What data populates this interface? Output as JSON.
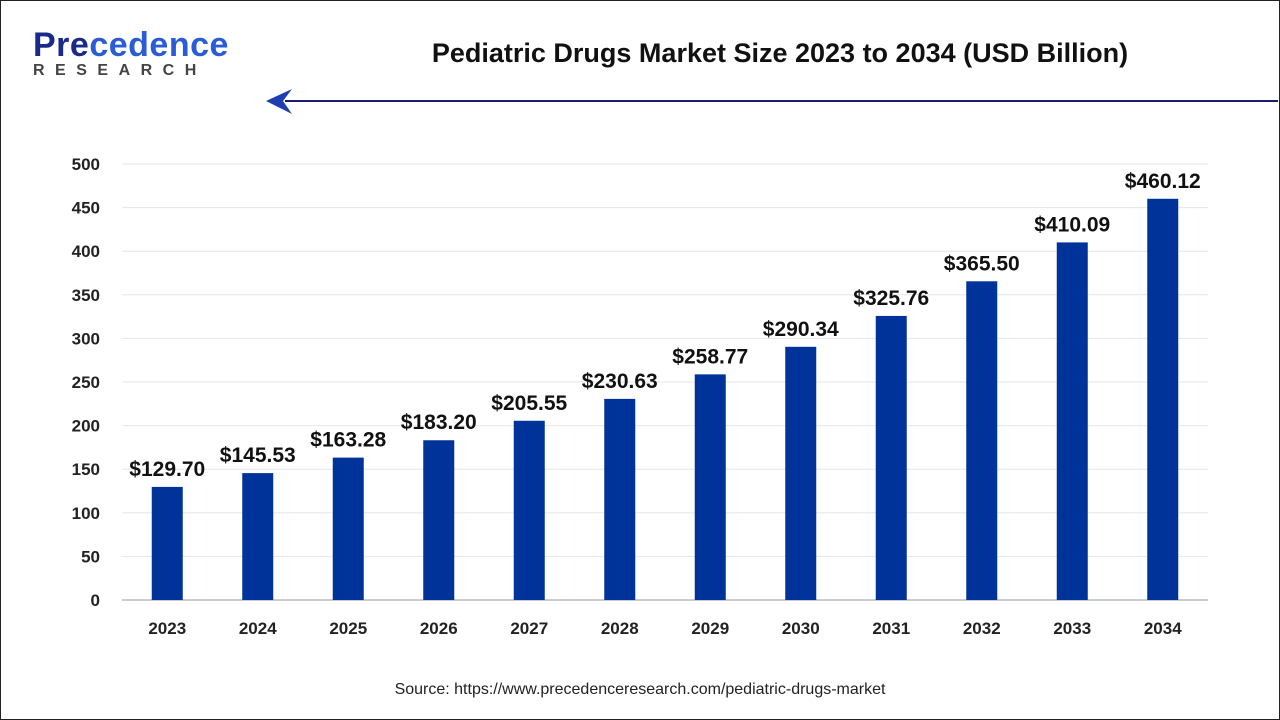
{
  "logo": {
    "text_main_dark": "Pre",
    "text_main_light": "cedence",
    "text_sub": "RESEARCH"
  },
  "source": "Source: https://www.precedenceresearch.com/pediatric-drugs-market",
  "colors": {
    "bar": "#003399",
    "arrow": "#1a1a6e"
  },
  "chart_data": {
    "type": "bar",
    "title": "Pediatric Drugs Market Size 2023 to 2034 (USD Billion)",
    "categories": [
      "2023",
      "2024",
      "2025",
      "2026",
      "2027",
      "2028",
      "2029",
      "2030",
      "2031",
      "2032",
      "2033",
      "2034"
    ],
    "values": [
      129.7,
      145.53,
      163.28,
      183.2,
      205.55,
      230.63,
      258.77,
      290.34,
      325.76,
      365.5,
      410.09,
      460.12
    ],
    "data_labels": [
      "$129.70",
      "$145.53",
      "$163.28",
      "$183.20",
      "$205.55",
      "$230.63",
      "$258.77",
      "$290.34",
      "$325.76",
      "$365.50",
      "$410.09",
      "$460.12"
    ],
    "yticks": [
      0,
      50,
      100,
      150,
      200,
      250,
      300,
      350,
      400,
      450,
      500
    ],
    "ylim": [
      0,
      500
    ],
    "grid": true,
    "xlabel": "",
    "ylabel": ""
  }
}
